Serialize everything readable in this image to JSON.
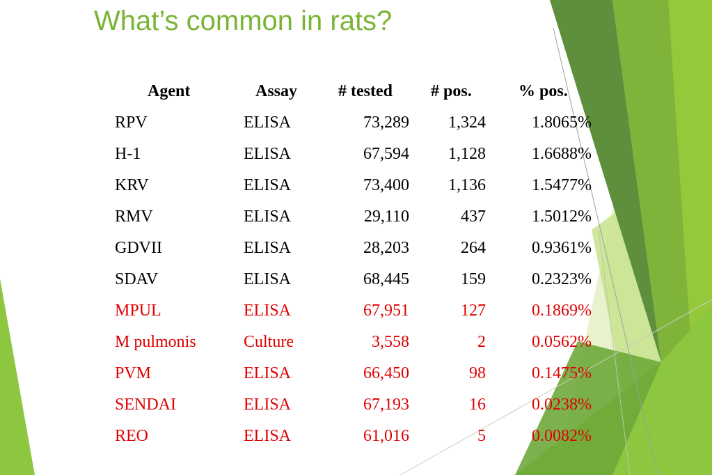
{
  "slide": {
    "title": "What’s common in rats?"
  },
  "table": {
    "headers": {
      "agent": "Agent",
      "assay": "Assay",
      "tested": "# tested",
      "pos": "# pos.",
      "pct": "% pos."
    },
    "rows": [
      {
        "agent": "RPV",
        "assay": "ELISA",
        "tested": "73,289",
        "pos": "1,324",
        "pct": "1.8065%",
        "color": "#000000"
      },
      {
        "agent": "H-1",
        "assay": "ELISA",
        "tested": "67,594",
        "pos": "1,128",
        "pct": "1.6688%",
        "color": "#000000"
      },
      {
        "agent": "KRV",
        "assay": "ELISA",
        "tested": "73,400",
        "pos": "1,136",
        "pct": "1.5477%",
        "color": "#000000"
      },
      {
        "agent": "RMV",
        "assay": "ELISA",
        "tested": "29,110",
        "pos": "437",
        "pct": "1.5012%",
        "color": "#000000"
      },
      {
        "agent": "GDVII",
        "assay": "ELISA",
        "tested": "28,203",
        "pos": "264",
        "pct": "0.9361%",
        "color": "#000000"
      },
      {
        "agent": "SDAV",
        "assay": "ELISA",
        "tested": "68,445",
        "pos": "159",
        "pct": "0.2323%",
        "color": "#000000"
      },
      {
        "agent": "MPUL",
        "assay": "ELISA",
        "tested": "67,951",
        "pos": "127",
        "pct": "0.1869%",
        "color": "#e00000"
      },
      {
        "agent": "M pulmonis",
        "assay": "Culture",
        "tested": "3,558",
        "pos": "2",
        "pct": "0.0562%",
        "color": "#e00000"
      },
      {
        "agent": "PVM",
        "assay": "ELISA",
        "tested": "66,450",
        "pos": "98",
        "pct": "0.1475%",
        "color": "#e00000"
      },
      {
        "agent": "SENDAI",
        "assay": "ELISA",
        "tested": "67,193",
        "pos": "16",
        "pct": "0.0238%",
        "color": "#e00000"
      },
      {
        "agent": "REO",
        "assay": "ELISA",
        "tested": "61,016",
        "pos": "5",
        "pct": "0.0082%",
        "color": "#e00000"
      }
    ]
  },
  "theme": {
    "title_color": "#7ab435",
    "accent_light": "#9ccc3c",
    "accent_mid": "#7ab435",
    "accent_dark": "#5a8f3a"
  }
}
